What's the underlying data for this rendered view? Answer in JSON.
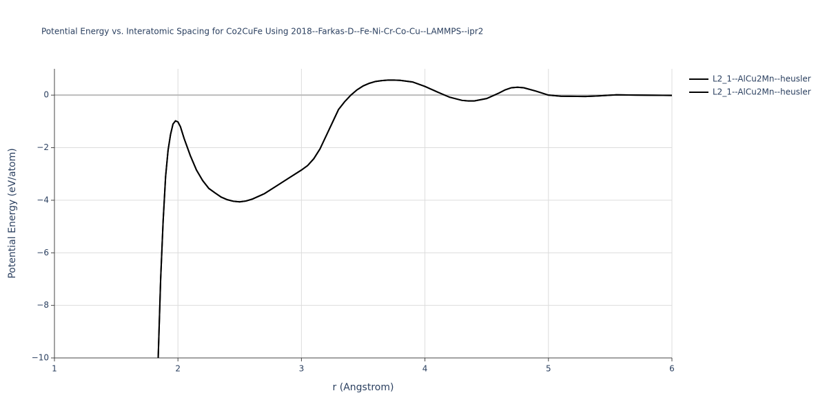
{
  "chart_data": {
    "type": "line",
    "title": "Potential Energy vs. Interatomic Spacing for Co2CuFe Using 2018--Farkas-D--Fe-Ni-Cr-Co-Cu--LAMMPS--ipr2",
    "x_label": "r (Angstrom)",
    "y_label": "Potential Energy (eV/atom)",
    "x": [
      1.84,
      1.86,
      1.88,
      1.9,
      1.92,
      1.94,
      1.96,
      1.98,
      2.0,
      2.02,
      2.05,
      2.1,
      2.15,
      2.2,
      2.25,
      2.3,
      2.35,
      2.4,
      2.45,
      2.5,
      2.55,
      2.6,
      2.7,
      2.8,
      2.9,
      3.0,
      3.05,
      3.1,
      3.15,
      3.2,
      3.25,
      3.3,
      3.35,
      3.4,
      3.45,
      3.5,
      3.55,
      3.6,
      3.65,
      3.7,
      3.75,
      3.8,
      3.9,
      4.0,
      4.1,
      4.2,
      4.3,
      4.35,
      4.4,
      4.5,
      4.6,
      4.65,
      4.7,
      4.75,
      4.8,
      4.9,
      5.0,
      5.1,
      5.3,
      5.4,
      5.55,
      5.7,
      6.0
    ],
    "series": [
      {
        "name": "L2_1--AlCu2Mn--heusler",
        "color": "#000000",
        "values": [
          -10,
          -7,
          -4.8,
          -3.1,
          -2.1,
          -1.5,
          -1.1,
          -0.98,
          -1.02,
          -1.2,
          -1.65,
          -2.3,
          -2.85,
          -3.25,
          -3.55,
          -3.72,
          -3.88,
          -3.98,
          -4.04,
          -4.06,
          -4.03,
          -3.96,
          -3.75,
          -3.45,
          -3.15,
          -2.85,
          -2.68,
          -2.42,
          -2.05,
          -1.55,
          -1.05,
          -0.55,
          -0.25,
          0.0,
          0.2,
          0.35,
          0.45,
          0.52,
          0.55,
          0.57,
          0.57,
          0.56,
          0.5,
          0.33,
          0.12,
          -0.08,
          -0.2,
          -0.22,
          -0.22,
          -0.13,
          0.08,
          0.2,
          0.28,
          0.3,
          0.28,
          0.15,
          0.0,
          -0.04,
          -0.05,
          -0.03,
          0.01,
          0.0,
          -0.01
        ]
      },
      {
        "name": "L2_1--AlCu2Mn--heusler",
        "color": "#000000",
        "values": [
          -10,
          -7,
          -4.8,
          -3.1,
          -2.1,
          -1.5,
          -1.1,
          -0.98,
          -1.02,
          -1.2,
          -1.65,
          -2.3,
          -2.85,
          -3.25,
          -3.55,
          -3.72,
          -3.88,
          -3.98,
          -4.04,
          -4.06,
          -4.03,
          -3.96,
          -3.75,
          -3.45,
          -3.15,
          -2.85,
          -2.68,
          -2.42,
          -2.05,
          -1.55,
          -1.05,
          -0.55,
          -0.25,
          0.0,
          0.2,
          0.35,
          0.45,
          0.52,
          0.55,
          0.57,
          0.57,
          0.56,
          0.5,
          0.33,
          0.12,
          -0.08,
          -0.2,
          -0.22,
          -0.22,
          -0.13,
          0.08,
          0.2,
          0.28,
          0.3,
          0.28,
          0.15,
          0.0,
          -0.04,
          -0.05,
          -0.03,
          0.01,
          0.0,
          -0.01
        ]
      }
    ],
    "xlim": [
      1,
      6
    ],
    "xticks": [
      1,
      2,
      3,
      4,
      5,
      6
    ],
    "ylim": [
      -10,
      1
    ],
    "yticks": [
      {
        "value": -10,
        "label": "−10"
      },
      {
        "value": -8,
        "label": "−8"
      },
      {
        "value": -6,
        "label": "−6"
      },
      {
        "value": -4,
        "label": "−4"
      },
      {
        "value": -2,
        "label": "−2"
      },
      0
    ],
    "grid": true,
    "legend": "right"
  }
}
